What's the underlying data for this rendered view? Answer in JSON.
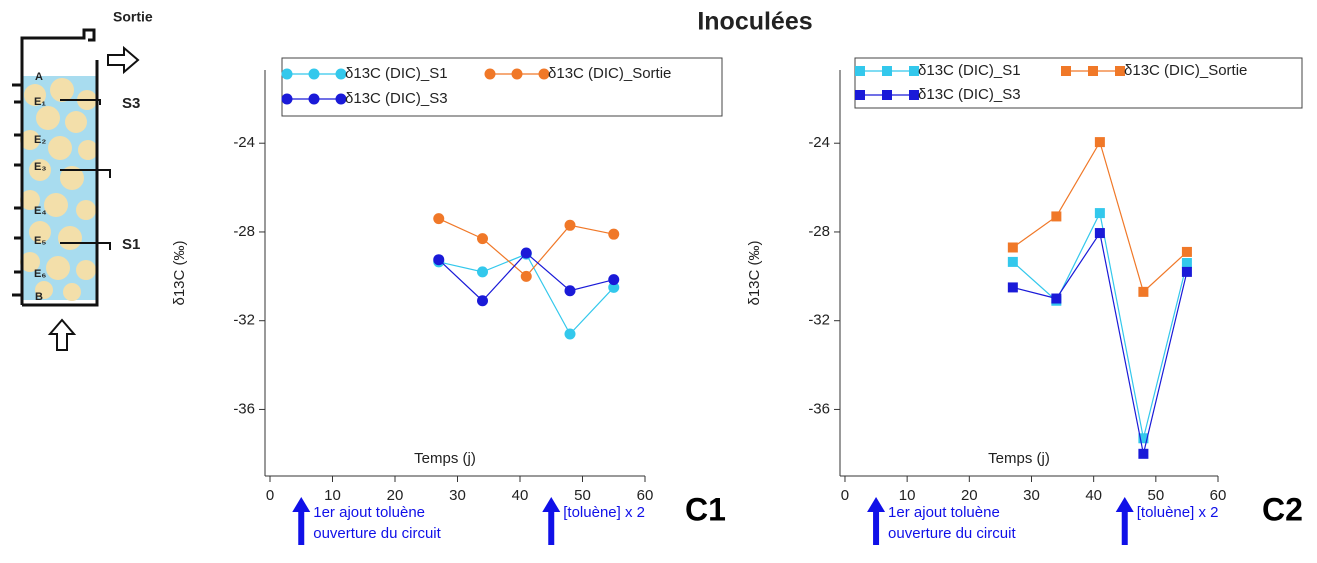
{
  "title": "Inoculées",
  "diagram": {
    "outlet": "Sortie",
    "top": "A",
    "bottom": "B",
    "ports": [
      "E₁",
      "E₂",
      "E₃",
      "E₄",
      "E₅",
      "E₆"
    ],
    "samplers": [
      "S3",
      "S1"
    ]
  },
  "chart_data": [
    {
      "type": "line",
      "marker": "circle",
      "panel": "C1",
      "xlabel": "Temps (j)",
      "ylabel": "δ13C (‰)",
      "x": [
        27,
        34,
        41,
        48,
        55
      ],
      "series": [
        {
          "name": "δ13C (DIC)_S1",
          "color": "#33c8ec",
          "values": [
            -29.35,
            -29.8,
            -29.0,
            -32.6,
            -30.5
          ]
        },
        {
          "name": "δ13C (DIC)_Sortie",
          "color": "#f07828",
          "values": [
            -27.4,
            -28.3,
            -30.0,
            -27.7,
            -28.1
          ]
        },
        {
          "name": "δ13C (DIC)_S3",
          "color": "#1a1ad8",
          "values": [
            -29.25,
            -31.1,
            -28.95,
            -30.65,
            -30.15
          ]
        }
      ],
      "xlim": [
        -0.8,
        60
      ],
      "xticks": [
        0,
        10,
        20,
        30,
        40,
        50,
        60
      ],
      "ylim": [
        -39,
        -20.7
      ],
      "yticks": [
        -24,
        -28,
        -32,
        -36
      ],
      "annotations": [
        {
          "x": 5,
          "text": [
            "1er ajout toluène",
            "ouverture du circuit"
          ]
        },
        {
          "x": 45,
          "text": [
            "[toluène] x 2"
          ]
        }
      ]
    },
    {
      "type": "line",
      "marker": "square",
      "panel": "C2",
      "xlabel": "Temps (j)",
      "ylabel": "δ13C (‰)",
      "x": [
        27,
        34,
        41,
        48,
        55
      ],
      "series": [
        {
          "name": "δ13C (DIC)_S1",
          "color": "#33c8ec",
          "values": [
            -29.35,
            -31.1,
            -27.15,
            -37.3,
            -29.4
          ]
        },
        {
          "name": "δ13C (DIC)_Sortie",
          "color": "#f07828",
          "values": [
            -28.7,
            -27.3,
            -23.95,
            -30.7,
            -28.9
          ]
        },
        {
          "name": "δ13C (DIC)_S3",
          "color": "#1a1ad8",
          "values": [
            -30.5,
            -31.0,
            -28.05,
            -38.0,
            -29.8
          ]
        }
      ],
      "xlim": [
        -0.8,
        60
      ],
      "xticks": [
        0,
        10,
        20,
        30,
        40,
        50,
        60
      ],
      "ylim": [
        -39,
        -20.7
      ],
      "yticks": [
        -24,
        -28,
        -32,
        -36
      ],
      "annotations": [
        {
          "x": 5,
          "text": [
            "1er ajout toluène",
            "ouverture du circuit"
          ]
        },
        {
          "x": 45,
          "text": [
            "[toluène] x 2"
          ]
        }
      ]
    }
  ]
}
